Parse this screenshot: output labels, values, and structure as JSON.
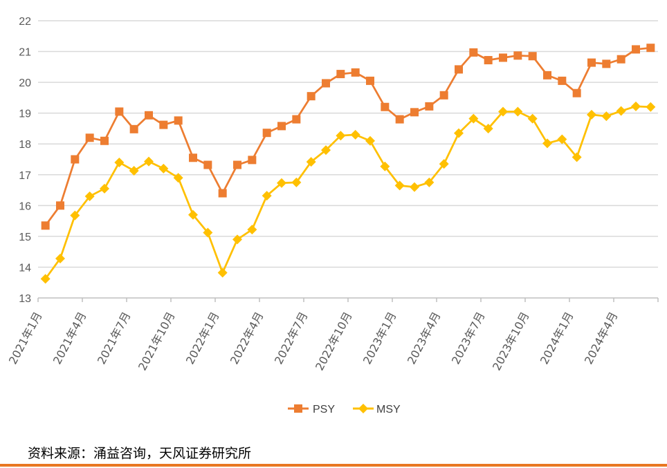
{
  "colors": {
    "psy": "#ed7d31",
    "msy": "#ffc000",
    "grid": "#d9d9d9",
    "axis": "#bfbfbf",
    "footer_rule": "#e87722"
  },
  "source_text": "资料来源：涌益咨询，天风证券研究所",
  "chart_data": {
    "type": "line",
    "x": [
      "2021年1月",
      "2021年2月",
      "2021年3月",
      "2021年4月",
      "2021年5月",
      "2021年6月",
      "2021年7月",
      "2021年8月",
      "2021年9月",
      "2021年10月",
      "2021年11月",
      "2021年12月",
      "2022年1月",
      "2022年2月",
      "2022年3月",
      "2022年4月",
      "2022年5月",
      "2022年6月",
      "2022年7月",
      "2022年8月",
      "2022年9月",
      "2022年10月",
      "2022年11月",
      "2022年12月",
      "2023年1月",
      "2023年2月",
      "2023年3月",
      "2023年4月",
      "2023年5月",
      "2023年6月",
      "2023年7月",
      "2023年8月",
      "2023年9月",
      "2023年10月",
      "2023年11月",
      "2023年12月",
      "2024年1月",
      "2024年2月",
      "2024年3月",
      "2024年4月",
      "2024年5月",
      "2024年6月"
    ],
    "tick_labels": [
      "2021年1月",
      "2021年4月",
      "2021年7月",
      "2021年10月",
      "2022年1月",
      "2022年4月",
      "2022年7月",
      "2022年10月",
      "2023年1月",
      "2023年4月",
      "2023年7月",
      "2023年10月",
      "2024年1月",
      "2024年4月"
    ],
    "ylim": [
      13,
      22
    ],
    "yticks": [
      13,
      14,
      15,
      16,
      17,
      18,
      19,
      20,
      21,
      22
    ],
    "grid": true,
    "legend_position": "bottom",
    "series": [
      {
        "name": "PSY",
        "marker": "square",
        "values": [
          15.35,
          16.0,
          17.5,
          18.2,
          18.1,
          19.05,
          18.48,
          18.93,
          18.62,
          18.76,
          17.55,
          17.32,
          16.4,
          17.32,
          17.48,
          18.36,
          18.58,
          18.8,
          19.55,
          19.97,
          20.27,
          20.32,
          20.05,
          19.2,
          18.8,
          19.03,
          19.22,
          19.58,
          20.42,
          20.97,
          20.72,
          20.8,
          20.87,
          20.85,
          20.23,
          20.05,
          19.65,
          20.64,
          20.6,
          20.75,
          21.07,
          21.12
        ]
      },
      {
        "name": "MSY",
        "marker": "diamond",
        "values": [
          13.62,
          14.28,
          15.68,
          16.3,
          16.55,
          17.4,
          17.13,
          17.43,
          17.2,
          16.9,
          15.7,
          15.12,
          13.82,
          14.9,
          15.22,
          16.32,
          16.73,
          16.75,
          17.42,
          17.8,
          18.27,
          18.3,
          18.1,
          17.27,
          16.65,
          16.6,
          16.75,
          17.35,
          18.35,
          18.82,
          18.5,
          19.05,
          19.05,
          18.82,
          18.02,
          18.15,
          17.57,
          18.95,
          18.9,
          19.07,
          19.22,
          19.2
        ]
      }
    ]
  }
}
